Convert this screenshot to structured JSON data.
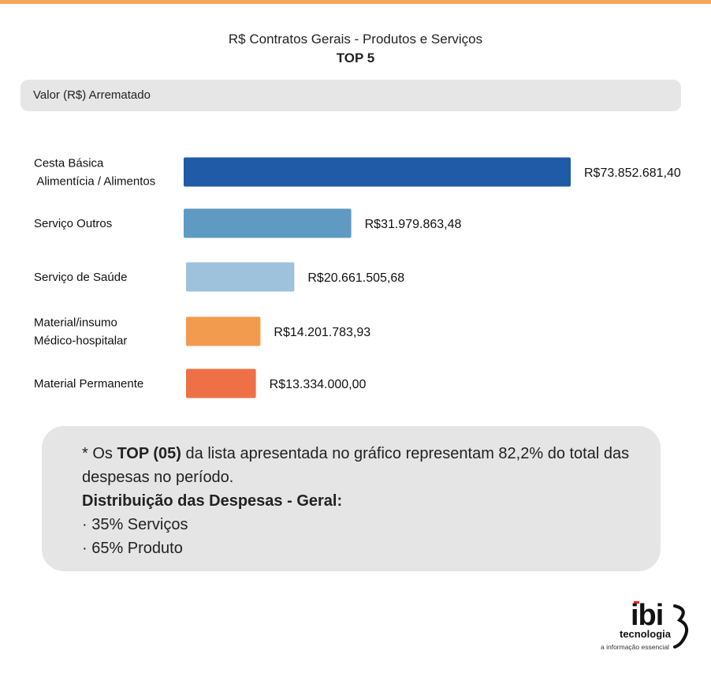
{
  "header": {
    "title": "R$ Contratos Gerais - Produtos e Serviços",
    "subtitle": "TOP 5",
    "panel_label": "Valor (R$) Arrematado"
  },
  "colors": {
    "top_rule": "#f5a85a",
    "panel_bg": "#e6e6e7",
    "logo_accent": "#d7262c"
  },
  "chart_data": {
    "type": "bar",
    "orientation": "horizontal",
    "categories": [
      [
        "Cesta Básica",
        " Alimentícia / Alimentos"
      ],
      [
        "Serviço Outros"
      ],
      [
        "Serviço de Saúde"
      ],
      [
        "Material/insumo",
        "Médico-hospitalar"
      ],
      [
        "Material Permanente"
      ]
    ],
    "values": [
      73852681.4,
      31979863.48,
      20661505.68,
      14201783.93,
      13334000.0
    ],
    "value_labels": [
      "R$73.852.681,40",
      "R$31.979.863,48",
      "R$20.661.505,68",
      "R$14.201.783,93",
      "R$13.334.000,00"
    ],
    "colors": [
      "#1f5ba6",
      "#5f9ac2",
      "#9ec1dc",
      "#f29b4e",
      "#ee7047"
    ],
    "grid": false,
    "legend": "none"
  },
  "note": {
    "line1_prefix": "* Os ",
    "line1_bold": "TOP (05)",
    "line1_suffix": " da lista apresentada no gráfico representam 82,2% do total das",
    "line2": "despesas no período.",
    "heading": "Distribuição das Despesas - Geral:",
    "items": [
      "· 35% Serviços",
      "· 65% Produto"
    ]
  },
  "logo": {
    "brand": "ibi",
    "name": "tecnologia",
    "tagline": "a informação essencial"
  }
}
